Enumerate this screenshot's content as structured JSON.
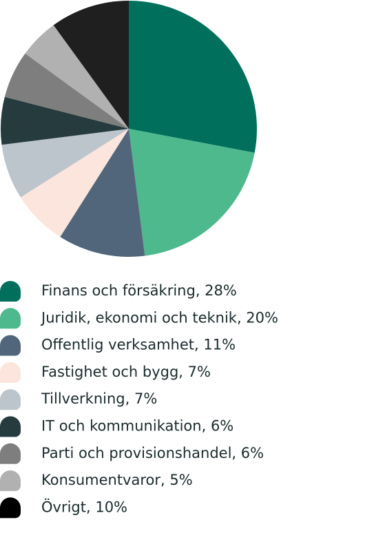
{
  "chart_data": {
    "type": "pie",
    "categories": [
      "Finans och försäkring, 28%",
      "Juridik, ekonomi och teknik, 20%",
      "Offentlig verksamhet, 11%",
      "Fastighet och bygg, 7%",
      "Tillverkning, 7%",
      "IT och kommunikation, 6%",
      "Parti och provisionshandel, 6%",
      "Konsumentvaror, 5%",
      "Övrigt, 10%"
    ],
    "values": [
      28,
      20,
      11,
      7,
      7,
      6,
      6,
      5,
      10
    ],
    "colors": [
      "#006f5c",
      "#4fb98e",
      "#51667b",
      "#fbe5dc",
      "#bcc5cc",
      "#253b3e",
      "#7e7e7e",
      "#b1b1b1",
      "#1f1f1f"
    ]
  }
}
